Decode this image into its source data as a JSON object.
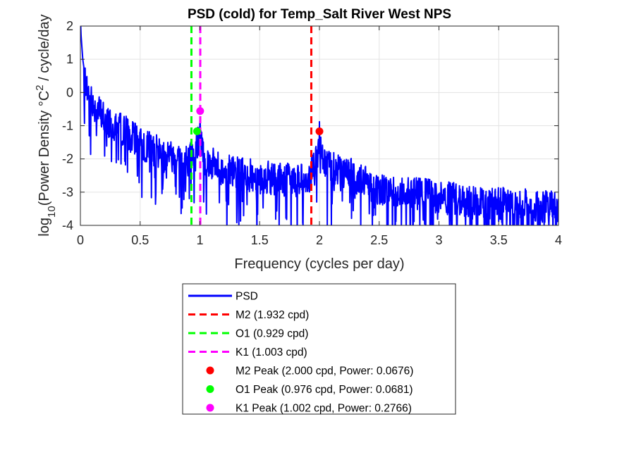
{
  "chart_data": {
    "type": "line",
    "title": "PSD (cold) for Temp_Salt River West NPS",
    "xlabel": "Frequency (cycles per day)",
    "ylabel": {
      "prefix": "log",
      "sub": "10",
      "main": "(Power Density °C",
      "sup": "2",
      "suffix": " / cycle/day"
    },
    "xlim": [
      0,
      4
    ],
    "ylim": [
      -4,
      2
    ],
    "xticks": [
      "0",
      "0.5",
      "1",
      "1.5",
      "2",
      "2.5",
      "3",
      "3.5",
      "4"
    ],
    "yticks": [
      "-4",
      "-3",
      "-2",
      "-1",
      "0",
      "1",
      "2"
    ],
    "grid": true,
    "legend_position": "below",
    "series": [
      {
        "name": "PSD",
        "color": "#0000ff",
        "style": "solid",
        "trend_points": [
          [
            0,
            2.0
          ],
          [
            0.02,
            1.0
          ],
          [
            0.05,
            0.2
          ],
          [
            0.1,
            -0.3
          ],
          [
            0.2,
            -0.7
          ],
          [
            0.3,
            -0.9
          ],
          [
            0.5,
            -1.5
          ],
          [
            0.7,
            -1.8
          ],
          [
            0.9,
            -2.0
          ],
          [
            0.95,
            -1.8
          ],
          [
            1.0,
            -1.2
          ],
          [
            1.05,
            -2.0
          ],
          [
            1.2,
            -2.3
          ],
          [
            1.5,
            -2.5
          ],
          [
            1.9,
            -2.6
          ],
          [
            1.98,
            -2.0
          ],
          [
            2.0,
            -1.3
          ],
          [
            2.02,
            -2.0
          ],
          [
            2.5,
            -2.85
          ],
          [
            3.0,
            -3.1
          ],
          [
            3.5,
            -3.3
          ],
          [
            4.0,
            -3.4
          ]
        ]
      }
    ],
    "reference_lines": [
      {
        "name": "M2 (1.932 cpd)",
        "x": 1.932,
        "color": "#ff0000",
        "style": "dashed"
      },
      {
        "name": "O1 (0.929 cpd)",
        "x": 0.929,
        "color": "#00ff00",
        "style": "dashed"
      },
      {
        "name": "K1 (1.003 cpd)",
        "x": 1.003,
        "color": "#ff00ff",
        "style": "dashed"
      }
    ],
    "peaks": [
      {
        "name": "M2 Peak (2.000 cpd, Power: 0.0676)",
        "x": 2.0,
        "y": -1.17,
        "color": "#ff0000"
      },
      {
        "name": "O1 Peak (0.976 cpd, Power: 0.0681)",
        "x": 0.976,
        "y": -1.167,
        "color": "#00ff00"
      },
      {
        "name": "K1 Peak (1.002 cpd, Power: 0.2766)",
        "x": 1.002,
        "y": -0.558,
        "color": "#ff00ff"
      }
    ],
    "legend": [
      "PSD",
      "M2 (1.932 cpd)",
      "O1 (0.929 cpd)",
      "K1 (1.003 cpd)",
      "M2 Peak (2.000 cpd, Power: 0.0676)",
      "O1 Peak (0.976 cpd, Power: 0.0681)",
      "K1 Peak (1.002 cpd, Power: 0.2766)"
    ]
  }
}
